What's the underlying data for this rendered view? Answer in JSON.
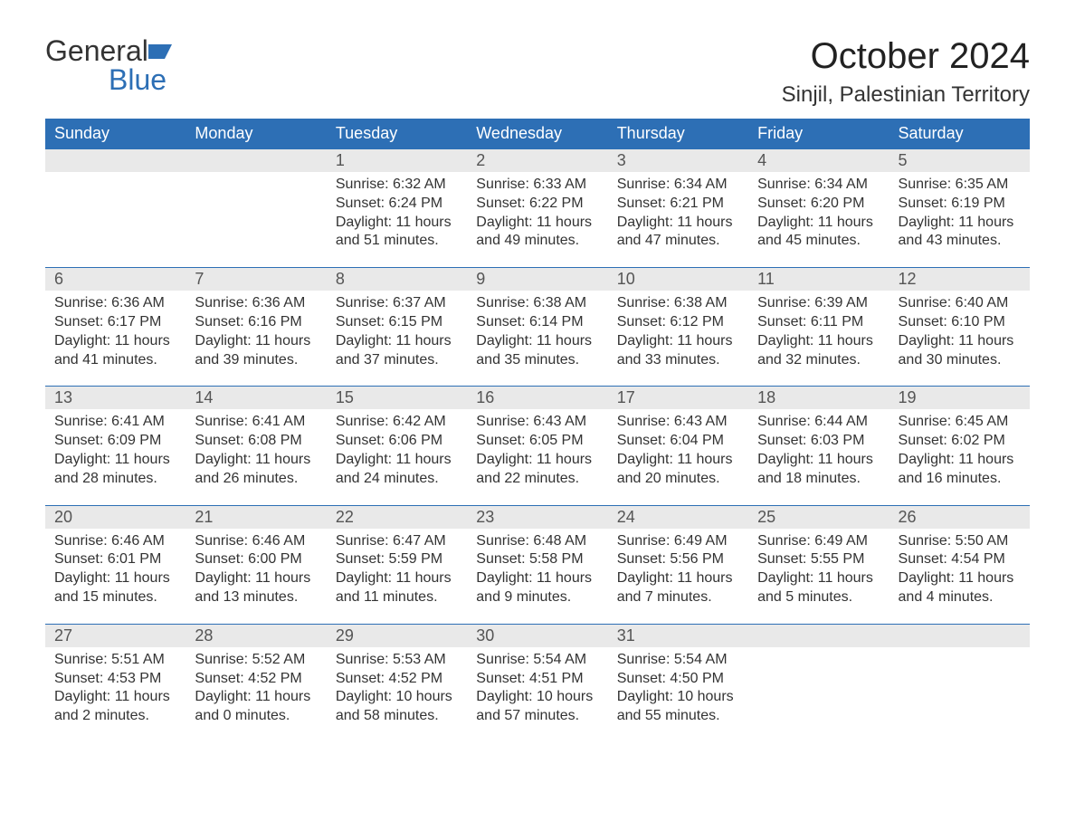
{
  "logo": {
    "word1": "General",
    "word2": "Blue"
  },
  "title": "October 2024",
  "location": "Sinjil, Palestinian Territory",
  "colors": {
    "brand": "#2d6fb5",
    "dayrow": "#e9e9e9",
    "bg": "#ffffff",
    "text": "#333333"
  },
  "font": {
    "title_size": 40,
    "location_size": 24,
    "header_size": 18,
    "body_size": 16
  },
  "daynames": [
    "Sunday",
    "Monday",
    "Tuesday",
    "Wednesday",
    "Thursday",
    "Friday",
    "Saturday"
  ],
  "weeks": [
    [
      null,
      null,
      {
        "n": "1",
        "sr": "6:32 AM",
        "ss": "6:24 PM",
        "dl": "11 hours and 51 minutes."
      },
      {
        "n": "2",
        "sr": "6:33 AM",
        "ss": "6:22 PM",
        "dl": "11 hours and 49 minutes."
      },
      {
        "n": "3",
        "sr": "6:34 AM",
        "ss": "6:21 PM",
        "dl": "11 hours and 47 minutes."
      },
      {
        "n": "4",
        "sr": "6:34 AM",
        "ss": "6:20 PM",
        "dl": "11 hours and 45 minutes."
      },
      {
        "n": "5",
        "sr": "6:35 AM",
        "ss": "6:19 PM",
        "dl": "11 hours and 43 minutes."
      }
    ],
    [
      {
        "n": "6",
        "sr": "6:36 AM",
        "ss": "6:17 PM",
        "dl": "11 hours and 41 minutes."
      },
      {
        "n": "7",
        "sr": "6:36 AM",
        "ss": "6:16 PM",
        "dl": "11 hours and 39 minutes."
      },
      {
        "n": "8",
        "sr": "6:37 AM",
        "ss": "6:15 PM",
        "dl": "11 hours and 37 minutes."
      },
      {
        "n": "9",
        "sr": "6:38 AM",
        "ss": "6:14 PM",
        "dl": "11 hours and 35 minutes."
      },
      {
        "n": "10",
        "sr": "6:38 AM",
        "ss": "6:12 PM",
        "dl": "11 hours and 33 minutes."
      },
      {
        "n": "11",
        "sr": "6:39 AM",
        "ss": "6:11 PM",
        "dl": "11 hours and 32 minutes."
      },
      {
        "n": "12",
        "sr": "6:40 AM",
        "ss": "6:10 PM",
        "dl": "11 hours and 30 minutes."
      }
    ],
    [
      {
        "n": "13",
        "sr": "6:41 AM",
        "ss": "6:09 PM",
        "dl": "11 hours and 28 minutes."
      },
      {
        "n": "14",
        "sr": "6:41 AM",
        "ss": "6:08 PM",
        "dl": "11 hours and 26 minutes."
      },
      {
        "n": "15",
        "sr": "6:42 AM",
        "ss": "6:06 PM",
        "dl": "11 hours and 24 minutes."
      },
      {
        "n": "16",
        "sr": "6:43 AM",
        "ss": "6:05 PM",
        "dl": "11 hours and 22 minutes."
      },
      {
        "n": "17",
        "sr": "6:43 AM",
        "ss": "6:04 PM",
        "dl": "11 hours and 20 minutes."
      },
      {
        "n": "18",
        "sr": "6:44 AM",
        "ss": "6:03 PM",
        "dl": "11 hours and 18 minutes."
      },
      {
        "n": "19",
        "sr": "6:45 AM",
        "ss": "6:02 PM",
        "dl": "11 hours and 16 minutes."
      }
    ],
    [
      {
        "n": "20",
        "sr": "6:46 AM",
        "ss": "6:01 PM",
        "dl": "11 hours and 15 minutes."
      },
      {
        "n": "21",
        "sr": "6:46 AM",
        "ss": "6:00 PM",
        "dl": "11 hours and 13 minutes."
      },
      {
        "n": "22",
        "sr": "6:47 AM",
        "ss": "5:59 PM",
        "dl": "11 hours and 11 minutes."
      },
      {
        "n": "23",
        "sr": "6:48 AM",
        "ss": "5:58 PM",
        "dl": "11 hours and 9 minutes."
      },
      {
        "n": "24",
        "sr": "6:49 AM",
        "ss": "5:56 PM",
        "dl": "11 hours and 7 minutes."
      },
      {
        "n": "25",
        "sr": "6:49 AM",
        "ss": "5:55 PM",
        "dl": "11 hours and 5 minutes."
      },
      {
        "n": "26",
        "sr": "5:50 AM",
        "ss": "4:54 PM",
        "dl": "11 hours and 4 minutes."
      }
    ],
    [
      {
        "n": "27",
        "sr": "5:51 AM",
        "ss": "4:53 PM",
        "dl": "11 hours and 2 minutes."
      },
      {
        "n": "28",
        "sr": "5:52 AM",
        "ss": "4:52 PM",
        "dl": "11 hours and 0 minutes."
      },
      {
        "n": "29",
        "sr": "5:53 AM",
        "ss": "4:52 PM",
        "dl": "10 hours and 58 minutes."
      },
      {
        "n": "30",
        "sr": "5:54 AM",
        "ss": "4:51 PM",
        "dl": "10 hours and 57 minutes."
      },
      {
        "n": "31",
        "sr": "5:54 AM",
        "ss": "4:50 PM",
        "dl": "10 hours and 55 minutes."
      },
      null,
      null
    ]
  ],
  "labels": {
    "sunrise": "Sunrise: ",
    "sunset": "Sunset: ",
    "daylight": "Daylight: "
  }
}
